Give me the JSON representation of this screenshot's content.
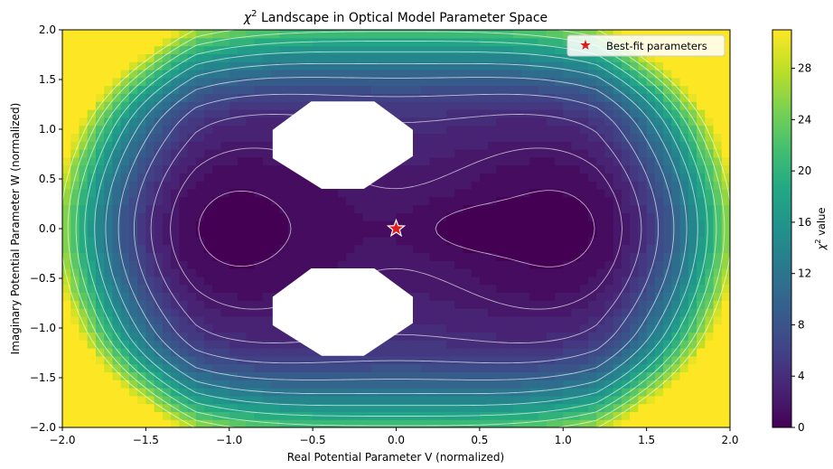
{
  "chart_data": {
    "type": "heatmap",
    "title_prefix": "χ",
    "title_sup": "2",
    "title_rest": " Landscape in Optical Model Parameter Space",
    "xlabel": "Real Potential Parameter V (normalized)",
    "ylabel": "Imaginary Potential Parameter W (normalized)",
    "xlim": [
      -2.0,
      2.0
    ],
    "ylim": [
      -2.0,
      2.0
    ],
    "x_ticks": [
      -2.0,
      -1.5,
      -1.0,
      -0.5,
      0.0,
      0.5,
      1.0,
      1.5,
      2.0
    ],
    "y_ticks": [
      -2.0,
      -1.5,
      -1.0,
      -0.5,
      0.0,
      0.5,
      1.0,
      1.5,
      2.0
    ],
    "x_tick_labels": [
      "−2.0",
      "−1.5",
      "−1.0",
      "−0.5",
      "0.0",
      "0.5",
      "1.0",
      "1.5",
      "2.0"
    ],
    "y_tick_labels": [
      "−2.0",
      "−1.5",
      "−1.0",
      "−0.5",
      "0.0",
      "0.5",
      "1.0",
      "1.5",
      "2.0"
    ],
    "colorbar": {
      "label_prefix": "χ",
      "label_sup": "2",
      "label_rest": " value",
      "range": [
        0,
        31
      ],
      "ticks": [
        0,
        4,
        8,
        12,
        16,
        20,
        24,
        28
      ],
      "tick_labels": [
        "0",
        "4",
        "8",
        "12",
        "16",
        "20",
        "24",
        "28"
      ],
      "colormap": "viridis"
    },
    "contour_color": "#ffffff",
    "masked_regions_note_in_data": "undefined (NaN) regions rendered white",
    "masked_regions": [
      {
        "center": [
          -0.32,
          0.84
        ],
        "half_width": 0.42,
        "half_height": 0.44
      },
      {
        "center": [
          -0.32,
          -0.84
        ],
        "half_width": 0.42,
        "half_height": 0.44
      }
    ],
    "best_fit": {
      "x": 0.0,
      "y": 0.0,
      "label": "Best-fit parameters",
      "marker": "star",
      "color": "#e31a1c"
    },
    "legend_position": "upper right",
    "grid": false
  }
}
